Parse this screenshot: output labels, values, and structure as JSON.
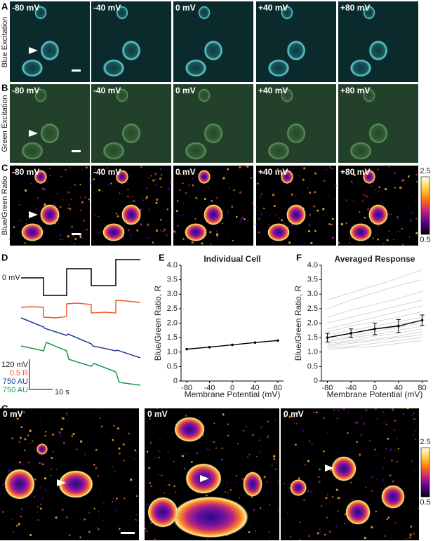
{
  "rows": [
    {
      "panel": "A",
      "label": "Blue Excitation"
    },
    {
      "panel": "B",
      "label": "Green Excitation"
    },
    {
      "panel": "C",
      "label": "Blue/Green Ratio"
    }
  ],
  "voltages": [
    "-80 mV",
    "-40 mV",
    "0 mV",
    "+40 mV",
    "+80 mV"
  ],
  "colorbars": [
    {
      "max": 2.5,
      "min": 0.5
    },
    {
      "max": 2.5,
      "min": 0.5
    }
  ],
  "panel_d": {
    "panel": "D",
    "zero_label": "0 mV",
    "scale_labels": [
      "120 mV",
      "0.5 R",
      "750 AU",
      "750 AU",
      "10 s"
    ]
  },
  "panel_g": {
    "panel": "G",
    "labels": [
      "0 mV",
      "0 mV",
      "0 mV"
    ]
  },
  "chart_data": [
    {
      "type": "line",
      "panel": "E",
      "title": "Individual Cell",
      "x_label": "Membrane Potential (mV)",
      "y_label": "Blue/Green Ratio, R",
      "x": [
        -80,
        -40,
        0,
        40,
        80
      ],
      "xlim": [
        -90,
        90
      ],
      "xticks": [
        -80,
        -40,
        0,
        40,
        80
      ],
      "ylim": [
        0,
        4
      ],
      "yticks": [
        0,
        0.5,
        {
          "value": 1,
          "label": "1.0"
        },
        1.5,
        {
          "value": 2,
          "label": "2.0"
        },
        2.5,
        {
          "value": 3,
          "label": "3.0"
        },
        3.5,
        {
          "value": 4,
          "label": "4.0"
        }
      ],
      "series": [
        {
          "color": "#000000",
          "values": [
            1.1,
            1.17,
            1.25,
            1.33,
            1.4
          ]
        }
      ]
    },
    {
      "type": "line",
      "panel": "F",
      "title": "Averaged Response",
      "x_label": "Membrane Potential (mV)",
      "y_label": "Blue/Green Ratio, R",
      "x": [
        -80,
        -40,
        0,
        40,
        80
      ],
      "xlim": [
        -90,
        90
      ],
      "xticks": [
        -80,
        -40,
        0,
        40,
        80
      ],
      "ylim": [
        0,
        4
      ],
      "yticks": [
        0,
        0.5,
        {
          "value": 1,
          "label": "1.0"
        },
        1.5,
        {
          "value": 2,
          "label": "2.0"
        },
        2.5,
        {
          "value": 3,
          "label": "3.0"
        },
        3.5,
        {
          "value": 4,
          "label": "4.0"
        }
      ],
      "series": [
        {
          "color": "#d4d4d4",
          "values": [
            1.1,
            1.15,
            1.2,
            1.3,
            1.4
          ]
        },
        {
          "color": "#d4d4d4",
          "values": [
            1.15,
            1.2,
            1.3,
            1.4,
            1.5
          ]
        },
        {
          "color": "#d4d4d4",
          "values": [
            1.2,
            1.3,
            1.4,
            1.5,
            1.6
          ]
        },
        {
          "color": "#d4d4d4",
          "values": [
            1.25,
            1.35,
            1.45,
            1.55,
            1.7
          ]
        },
        {
          "color": "#d4d4d4",
          "values": [
            1.3,
            1.4,
            1.55,
            1.65,
            1.8
          ]
        },
        {
          "color": "#d4d4d4",
          "values": [
            1.35,
            1.5,
            1.6,
            1.75,
            1.9
          ]
        },
        {
          "color": "#d4d4d4",
          "values": [
            1.4,
            1.55,
            1.7,
            1.85,
            2.0
          ]
        },
        {
          "color": "#d4d4d4",
          "values": [
            1.5,
            1.65,
            1.8,
            1.95,
            2.1
          ]
        },
        {
          "color": "#d4d4d4",
          "values": [
            1.6,
            1.75,
            1.9,
            2.05,
            2.2
          ]
        },
        {
          "color": "#d4d4d4",
          "values": [
            1.7,
            1.9,
            2.05,
            2.2,
            2.4
          ]
        },
        {
          "color": "#d4d4d4",
          "values": [
            1.8,
            2.0,
            2.2,
            2.4,
            2.6
          ]
        },
        {
          "color": "#d4d4d4",
          "values": [
            2.0,
            2.2,
            2.4,
            2.6,
            2.8
          ]
        },
        {
          "color": "#d4d4d4",
          "values": [
            2.2,
            2.45,
            2.65,
            2.85,
            3.1
          ]
        },
        {
          "color": "#d4d4d4",
          "values": [
            2.5,
            2.8,
            3.05,
            3.3,
            3.5
          ]
        },
        {
          "color": "#d4d4d4",
          "values": [
            2.8,
            3.05,
            3.3,
            3.55,
            3.85
          ]
        },
        {
          "color": "#000000",
          "values": [
            1.5,
            1.65,
            1.8,
            1.9,
            2.1
          ],
          "errors": [
            0.15,
            0.15,
            0.2,
            0.22,
            0.18
          ]
        }
      ]
    }
  ]
}
